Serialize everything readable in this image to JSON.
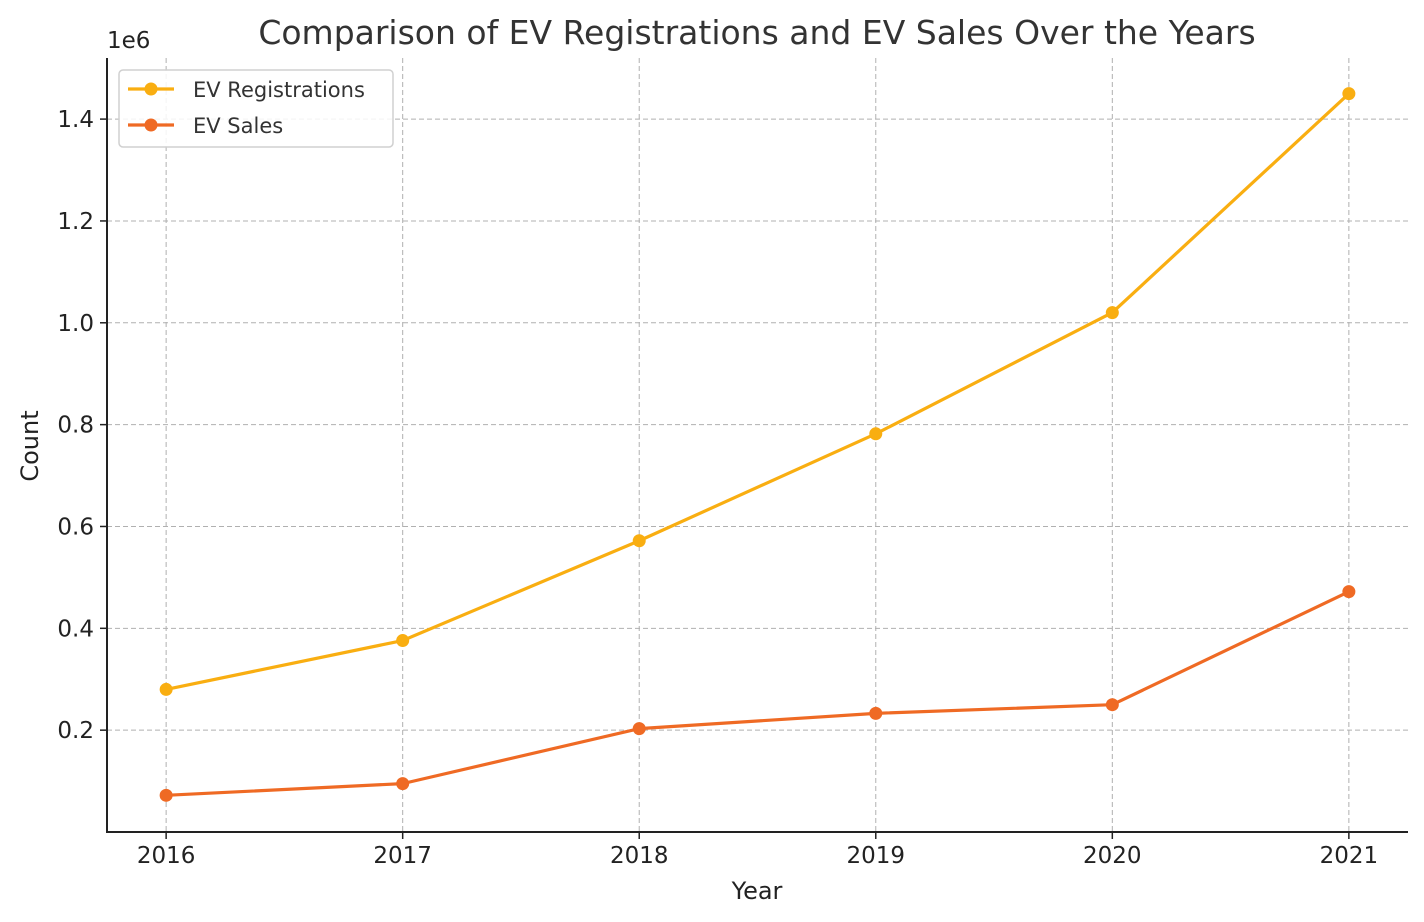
{
  "chart_data": {
    "type": "line",
    "title": "Comparison of EV Registrations and EV Sales Over the Years",
    "xlabel": "Year",
    "ylabel": "Count",
    "y_offset_label": "1e6",
    "x": [
      2016,
      2017,
      2018,
      2019,
      2020,
      2021
    ],
    "x_tick_labels": [
      "2016",
      "2017",
      "2018",
      "2019",
      "2020",
      "2021"
    ],
    "y_ticks": [
      0.2,
      0.4,
      0.6,
      0.8,
      1.0,
      1.2,
      1.4
    ],
    "y_tick_labels": [
      "0.2",
      "0.4",
      "0.6",
      "0.8",
      "1.0",
      "1.2",
      "1.4"
    ],
    "xlim": [
      2015.75,
      2021.25
    ],
    "ylim": [
      0.0,
      1.52
    ],
    "y_scale_factor": 1000000,
    "grid": true,
    "legend_position": "top-left",
    "series": [
      {
        "name": "EV Registrations",
        "color": "#F9AE11",
        "values": [
          280000,
          376000,
          572000,
          782000,
          1020000,
          1450000
        ]
      },
      {
        "name": "EV Sales",
        "color": "#EF6A24",
        "values": [
          72000,
          95000,
          203000,
          233000,
          250000,
          472000
        ]
      }
    ]
  }
}
